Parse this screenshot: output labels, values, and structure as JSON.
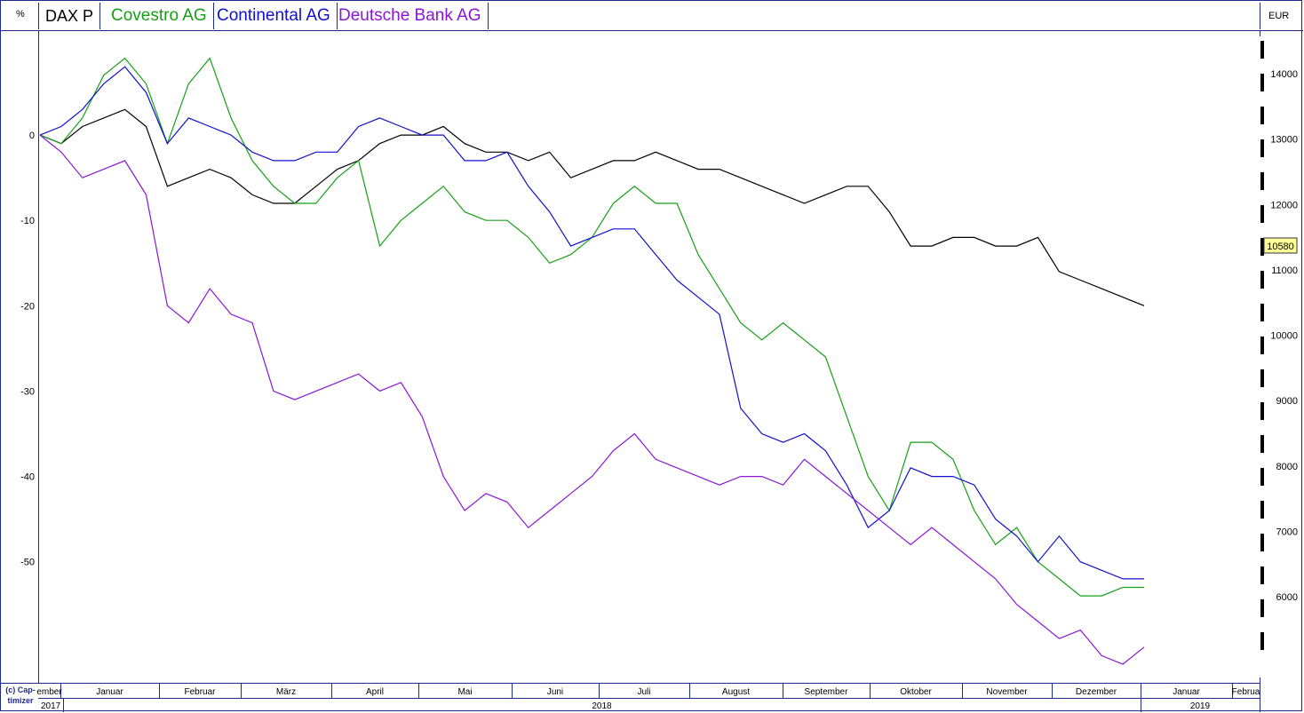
{
  "header": {
    "left_unit": "%",
    "right_unit": "EUR",
    "copyright_line1": "(c) Cap-",
    "copyright_line2": "timizer",
    "last_value_badge": "10580"
  },
  "legend": [
    {
      "name": "DAX P",
      "color": "#000000"
    },
    {
      "name": "Covestro AG",
      "color": "#16a016"
    },
    {
      "name": "Continental AG",
      "color": "#1010d0"
    },
    {
      "name": "Deutsche Bank AG",
      "color": "#8a16d8"
    }
  ],
  "axes": {
    "left_ticks": [
      "0",
      "-10",
      "-20",
      "-30",
      "-40",
      "-50"
    ],
    "right_ticks": [
      "14000",
      "13000",
      "12000",
      "11000",
      "10000",
      "9000",
      "8000",
      "7000",
      "6000"
    ],
    "months": [
      "ember",
      "Januar",
      "Februar",
      "März",
      "April",
      "Mai",
      "Juni",
      "Juli",
      "August",
      "September",
      "Oktober",
      "November",
      "Dezember",
      "Januar",
      "Februa"
    ],
    "years": [
      "2017",
      "2018",
      "2019"
    ]
  },
  "chart_data": {
    "type": "line",
    "xlabel": "",
    "ylabel": "%",
    "y2label": "EUR",
    "ylim": [
      -62,
      10
    ],
    "y_right_ticks": [
      14000,
      13000,
      12000,
      11000,
      10000,
      9000,
      8000,
      7000,
      6000
    ],
    "x": [
      "2017-12-29",
      "2018-01-05",
      "2018-01-12",
      "2018-01-19",
      "2018-01-26",
      "2018-02-02",
      "2018-02-09",
      "2018-02-16",
      "2018-02-23",
      "2018-03-02",
      "2018-03-09",
      "2018-03-16",
      "2018-03-23",
      "2018-03-30",
      "2018-04-06",
      "2018-04-13",
      "2018-04-20",
      "2018-04-27",
      "2018-05-04",
      "2018-05-11",
      "2018-05-18",
      "2018-05-25",
      "2018-06-01",
      "2018-06-08",
      "2018-06-15",
      "2018-06-22",
      "2018-06-29",
      "2018-07-06",
      "2018-07-13",
      "2018-07-20",
      "2018-07-27",
      "2018-08-03",
      "2018-08-10",
      "2018-08-17",
      "2018-08-24",
      "2018-08-31",
      "2018-09-07",
      "2018-09-14",
      "2018-09-21",
      "2018-09-28",
      "2018-10-05",
      "2018-10-12",
      "2018-10-19",
      "2018-10-26",
      "2018-11-02",
      "2018-11-09",
      "2018-11-16",
      "2018-11-23",
      "2018-11-30",
      "2018-12-07",
      "2018-12-14",
      "2018-12-21",
      "2018-12-28"
    ],
    "series": [
      {
        "name": "DAX P",
        "color": "#000000",
        "values": [
          0,
          -1,
          1,
          2,
          3,
          1,
          -6,
          -5,
          -4,
          -5,
          -7,
          -8,
          -8,
          -6,
          -4,
          -3,
          -1,
          0,
          0,
          1,
          -1,
          -2,
          -2,
          -3,
          -2,
          -5,
          -4,
          -3,
          -3,
          -2,
          -3,
          -4,
          -4,
          -5,
          -6,
          -7,
          -8,
          -7,
          -6,
          -6,
          -9,
          -13,
          -13,
          -12,
          -12,
          -13,
          -13,
          -12,
          -16,
          -17,
          -18,
          -19,
          -20
        ]
      },
      {
        "name": "Covestro AG",
        "color": "#16a016",
        "values": [
          0,
          -1,
          2,
          7,
          9,
          6,
          -1,
          6,
          9,
          2,
          -3,
          -6,
          -8,
          -8,
          -5,
          -3,
          -13,
          -10,
          -8,
          -6,
          -9,
          -10,
          -10,
          -12,
          -15,
          -14,
          -12,
          -8,
          -6,
          -8,
          -8,
          -14,
          -18,
          -22,
          -24,
          -22,
          -24,
          -26,
          -33,
          -40,
          -44,
          -36,
          -36,
          -38,
          -44,
          -48,
          -46,
          -50,
          -52,
          -54,
          -54,
          -53,
          -53
        ]
      },
      {
        "name": "Continental AG",
        "color": "#1010d0",
        "values": [
          0,
          1,
          3,
          6,
          8,
          5,
          -1,
          2,
          1,
          0,
          -2,
          -3,
          -3,
          -2,
          -2,
          1,
          2,
          1,
          0,
          0,
          -3,
          -3,
          -2,
          -6,
          -9,
          -13,
          -12,
          -11,
          -11,
          -14,
          -17,
          -19,
          -21,
          -32,
          -35,
          -36,
          -35,
          -37,
          -41,
          -46,
          -44,
          -39,
          -40,
          -40,
          -41,
          -45,
          -47,
          -50,
          -47,
          -50,
          -51,
          -52,
          -52
        ]
      },
      {
        "name": "Deutsche Bank AG",
        "color": "#8a16d8",
        "values": [
          0,
          -2,
          -5,
          -4,
          -3,
          -7,
          -20,
          -22,
          -18,
          -21,
          -22,
          -30,
          -31,
          -30,
          -29,
          -28,
          -30,
          -29,
          -33,
          -40,
          -44,
          -42,
          -43,
          -46,
          -44,
          -42,
          -40,
          -37,
          -35,
          -38,
          -39,
          -40,
          -41,
          -40,
          -40,
          -41,
          -38,
          -40,
          -42,
          -44,
          -46,
          -48,
          -46,
          -48,
          -50,
          -52,
          -55,
          -57,
          -59,
          -58,
          -61,
          -62,
          -60
        ]
      }
    ]
  }
}
